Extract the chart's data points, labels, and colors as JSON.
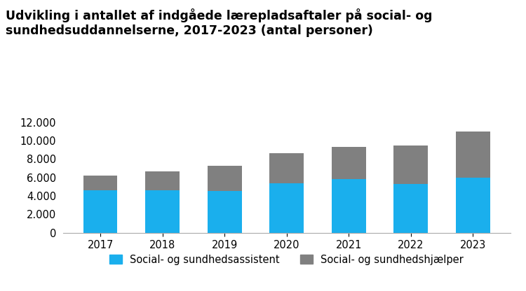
{
  "title_line1": "Udvikling i antallet af indgåede lærepladsaftaler på social- og",
  "title_line2": "sundhedsuddannelserne, 2017-2023 (antal personer)",
  "years": [
    "2017",
    "2018",
    "2019",
    "2020",
    "2021",
    "2022",
    "2023"
  ],
  "assistants": [
    4650,
    4580,
    4530,
    5380,
    5820,
    5280,
    5950
  ],
  "helpers": [
    1550,
    2080,
    2720,
    3250,
    3520,
    4220,
    5050
  ],
  "color_assistant": "#1AAFED",
  "color_helper": "#808080",
  "legend_assistant": "Social- og sundhedsassistent",
  "legend_helper": "Social- og sundhedshjælper",
  "ylim": [
    0,
    12000
  ],
  "yticks": [
    0,
    2000,
    4000,
    6000,
    8000,
    10000,
    12000
  ],
  "background_color": "#ffffff",
  "title_fontsize": 12.5,
  "tick_fontsize": 10.5,
  "legend_fontsize": 10.5,
  "bar_width": 0.55
}
